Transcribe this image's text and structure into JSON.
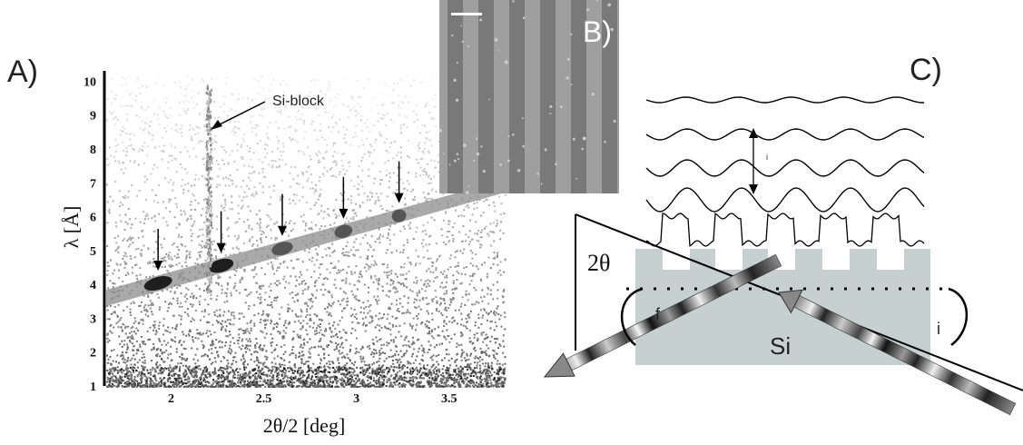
{
  "panels": {
    "a": "A)",
    "b": "B)",
    "c": "C)"
  },
  "chart_data": {
    "type": "heatmap",
    "xlabel": "2θ/2 [deg]",
    "ylabel": "λ [Å]",
    "xlim": [
      1.65,
      3.8
    ],
    "ylim": [
      1,
      10.2
    ],
    "x_ticks": [
      "2",
      "2.5",
      "3",
      "3.5"
    ],
    "y_ticks": [
      "1",
      "2",
      "3",
      "4",
      "5",
      "6",
      "7",
      "8",
      "9",
      "10"
    ],
    "annotation": "Si-block",
    "si_block_x": 2.2,
    "band": {
      "x_start": 1.65,
      "lambda_start": 3.6,
      "x_end": 3.8,
      "lambda_end": 6.9
    },
    "arrow_peaks_x": [
      1.93,
      2.27,
      2.6,
      2.93,
      3.23
    ]
  },
  "diagram": {
    "theta_label": "2θ",
    "f_label": "f",
    "i_label": "i",
    "i_small_label": "i",
    "material_label": "Si"
  },
  "colors": {
    "substrate": "#c6d0d0",
    "sem_background": "#8e8e8e",
    "sem_stripe_light": "#a4a4a4",
    "sem_stripe_dark": "#747474"
  }
}
